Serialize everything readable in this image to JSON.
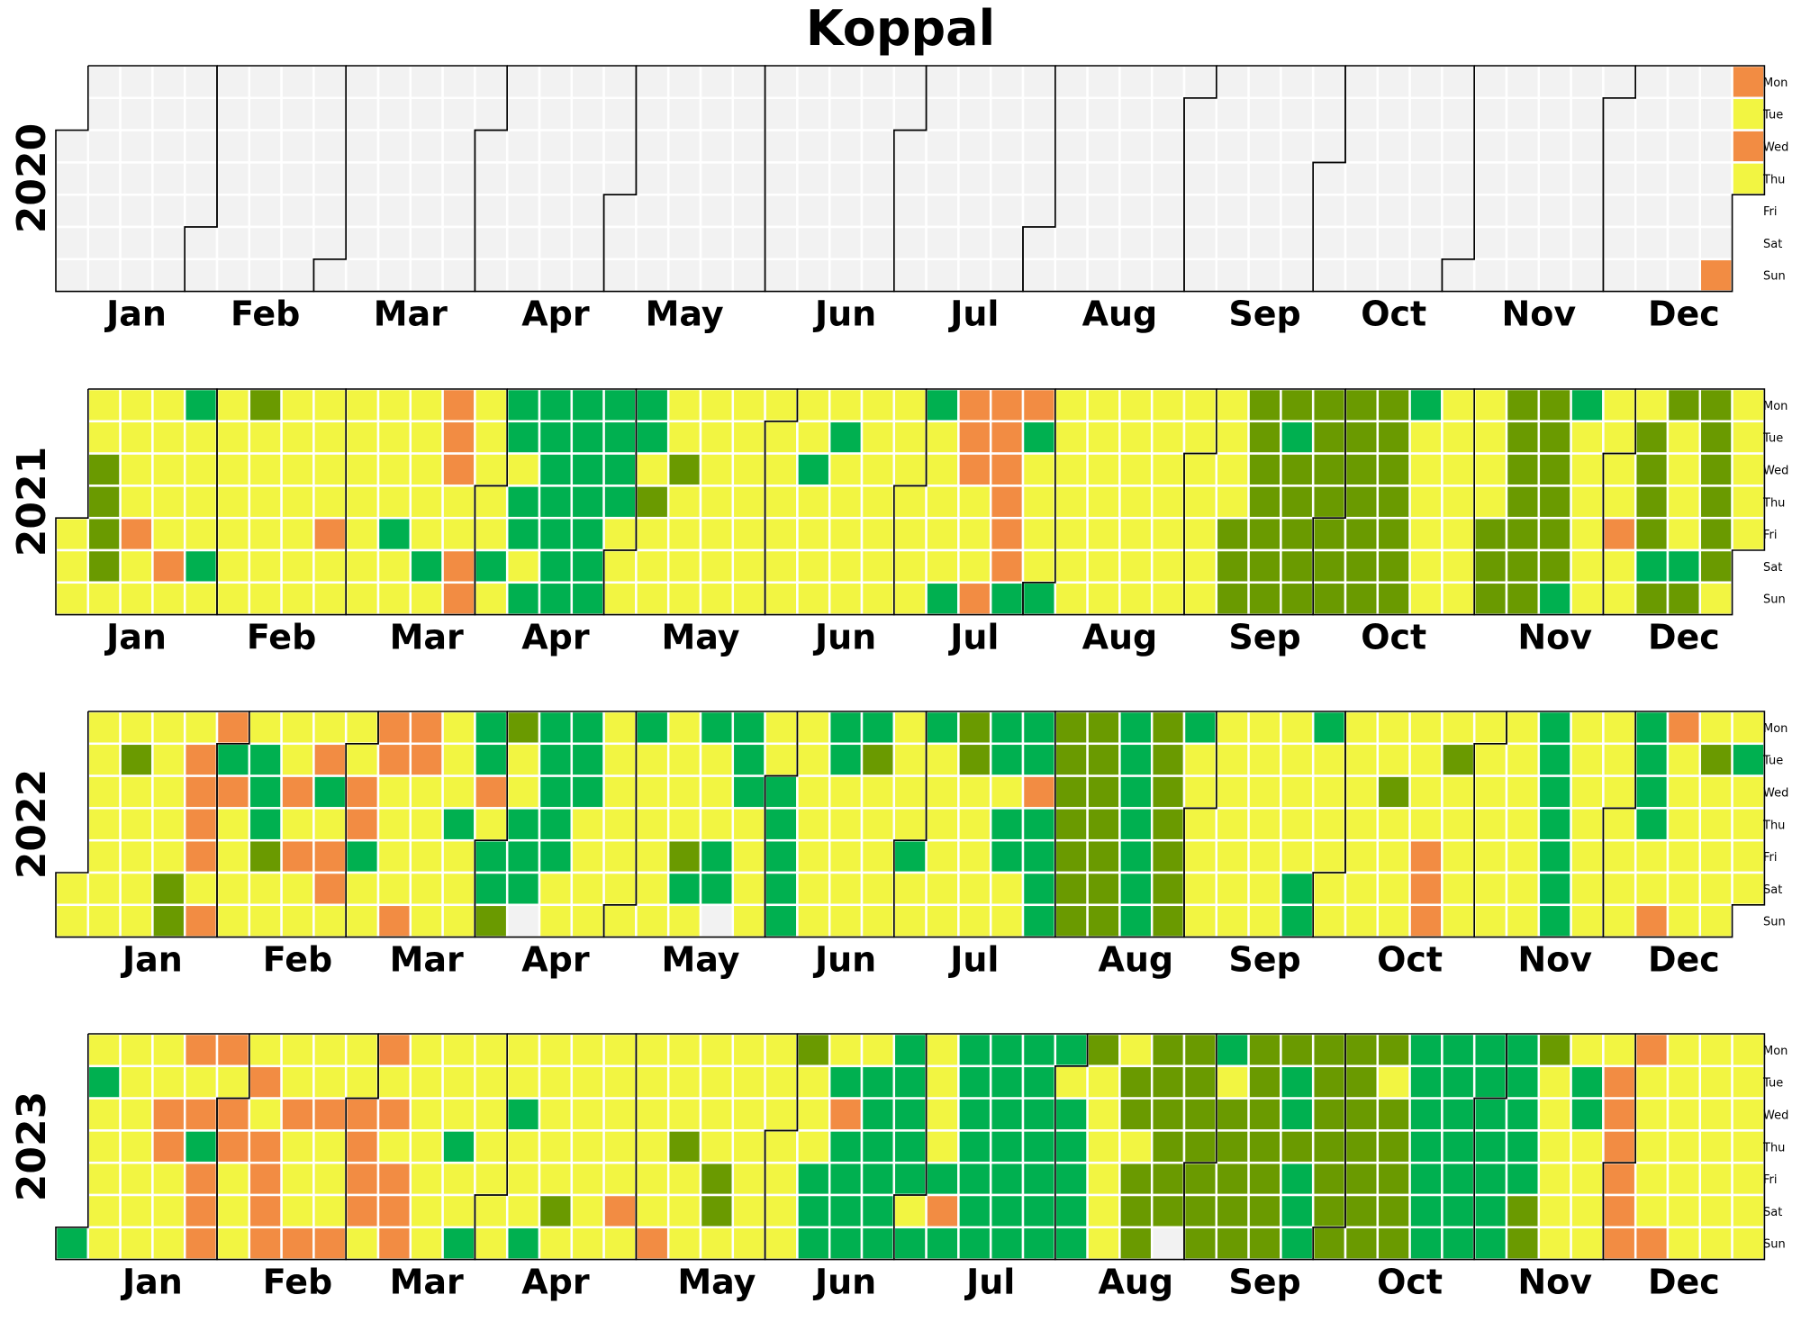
{
  "chart_data": {
    "type": "heatmap",
    "title": "Koppal",
    "first_day": "2020-01-01",
    "month_labels": [
      "Jan",
      "Feb",
      "Mar",
      "Apr",
      "May",
      "Jun",
      "Jul",
      "Aug",
      "Sep",
      "Oct",
      "Nov",
      "Dec"
    ],
    "weekday_labels": [
      "Mon",
      "Tue",
      "Wed",
      "Thu",
      "Fri",
      "Sat",
      "Sun"
    ],
    "no_data_color": "#f2f2f2",
    "palette": {
      "r": "#ff0000",
      "m": "#7b3535",
      "o": "#f28c43",
      "y": "#f2f542",
      "g": "#00b050",
      "d": "#6a9a00"
    },
    "years": [
      {
        "year": "2020",
        "weeks": [
          "..-----",
          "-------",
          "-------",
          "-------",
          "-------",
          "-------",
          "-------",
          "-------",
          "-------",
          "-------",
          "-------",
          "-------",
          "-------",
          "-------",
          "-------",
          "-------",
          "-------",
          "-------",
          "-------",
          "-------",
          "-------",
          "-------",
          "-------",
          "-------",
          "-------",
          "-------",
          "-------",
          "-------",
          "-------",
          "-------",
          "-------",
          "-------",
          "-------",
          "-------",
          "-------",
          "-------",
          "-------",
          "-------",
          "-------",
          "-------",
          "-------",
          "-------",
          "-------",
          "-------",
          "-------",
          "-------",
          "-------",
          "-------",
          "-------",
          "-------",
          "-------",
          "------o",
          "oyoyyyo"
        ]
      },
      {
        "year": "2021",
        "weeks": [
          "....yyy",
          "yyddddy",
          "yyyyoyy",
          "yyyyyoy",
          "gyyyygy",
          "yyyyyyy",
          "dyyyyyy",
          "yyyyyyy",
          "yyyyoyy",
          "yyyyyyy",
          "yyyygyy",
          "yyyyygy",
          "oooyyoo",
          "yyyyygy",
          "ggyggyg",
          "ggggggg",
          "ggggggg",
          "ggggyyy",
          "ggydyyy",
          "yydyyyy",
          "yyyyyyy",
          "yyyyyyy",
          "yyyyyyy",
          "yygyyyy",
          "ygyyyyy",
          "yyyyyyy",
          "yyyyyyy",
          "gyyyyyg",
          "oooyyyo",
          "oooooog",
          "ogyyyyg",
          "yyyyyyy",
          "yyyyyyy",
          "yyyyyyy",
          "yyyyyyy",
          "yyyyyyy",
          "yyyyddd",
          "ddddddd",
          "dgddddd",
          "ddddddd",
          "ddddddd",
          "ddddddd",
          "gyyyyyy",
          "yyyyyyy",
          "yyyyddd",
          "ddddddd",
          "ddddddg",
          "gyyyyyy",
          "yyyyoyy",
          "yddddgd",
          "dyyyygd",
          "ddddddy",
          "yyyyyyy",
          "yyyyyyy",
          "ddddyyy",
          "ddyyyyg",
          "yyyyyyy",
          "yyyyyyy",
          "gyyyyyy",
          "yyyyyyd",
          "yyyyyyy"
        ]
      },
      {
        "year": "2022",
        "weeks": [
          ".....yy",
          "yyyyyyy",
          "ydyyyyy",
          "yyyyydd",
          "yooooyo",
          "ogoyyyy",
          "ygggdyy",
          "yyoyoyy",
          "yogyooy",
          "yyoogyy",
          "ooyyyyo",
          "ooyyyyy",
          "yyygyyy",
          "ggoyggd",
          "dyyggg",
          "gggggyy",
          "gggyyyy",
          "yyyyyyy",
          "gyyyyyy",
          "yyyydgy",
          "gyyygg",
          "gggyyyy",
          "yyggggg",
          "yyyyyyy",
          "ggyyyyy",
          "gdyyyyy",
          "yyyygyy",
          "gyyyyyy",
          "ddyyyyy",
          "ggyggyy",
          "ggogggg",
          "dddddddd",
          "ddddddd",
          "gggggggg",
          "ddddddd",
          "gyyyyyy",
          "yyyyyyy",
          "yyyyyyy",
          "yyyyygg",
          "gyyyyyy",
          "yyyyyyy",
          "yydyyyy",
          "yyyyooo",
          "ydyyyyy",
          "yyyyyyy",
          "yyyyyyy",
          "gggggggg",
          "yyyyyyy",
          "yyyyyyy",
          "ggggyyo",
          "oyyyyyy",
          "ydyyyyy",
          "ygyyyyy",
          "yyyyyoo",
          "ooyyyyy",
          "yyyyyyy",
          "gggyyyy",
          "yyoyyyy",
          "yyyoyyo",
          "ooyyyyy",
          "yyyyyyy",
          "ggyygg",
          "yyyyyyy"
        ]
      },
      {
        "year": "2023",
        "weeks": [
          "......g",
          "ygyyyyy",
          "yyyyyyy",
          "yyooyyy",
          "oyogooo",
          "oyooyyy",
          "yoyoooo",
          "yyoyyyo",
          "yyoyyyo",
          "yyooooy",
          "oyoyooo",
          "yyyyyyy",
          "yyygyyg",
          "yyyyyyy",
          "yygyyyg",
          "yyyyydy",
          "yyyyyyy",
          "yyyyyoy",
          "yyyyyyo",
          "yyydyyy",
          "yyyyddy",
          "yyyyyyy",
          "yyyyyyy",
          "dyyyggg",
          "ygogggg",
          "ygggggg",
          "gggggygg",
          "yyyygog",
          "gggggggg",
          "gggggggg",
          "ggggggg",
          "gyggggg",
          "dyyyyyy",
          "yddyddd",
          "dddddd",
          "dddddddd",
          "gyddddd",
          "ddddddd",
          "dggdggg",
          "ddddddd",
          "ddddddd",
          "dyddddd",
          "ggggggg",
          "gggggggg",
          "gggggggg",
          "gggggdd",
          "dyyyyyy",
          "yggyyyy",
          "yoooooo",
          "oyyyyyo",
          "yyyyyyy",
          "yyyyyyy",
          "yyyyyyy",
          "yddddgy",
          "yoddyyo",
          "dddyydy",
          "yyyyyyy",
          "yyyyyyy",
          "yyyyyyy",
          "yyyyyyy",
          "yyyyyyy",
          "yoyyyyy",
          "yyyoooy"
        ]
      }
    ]
  }
}
